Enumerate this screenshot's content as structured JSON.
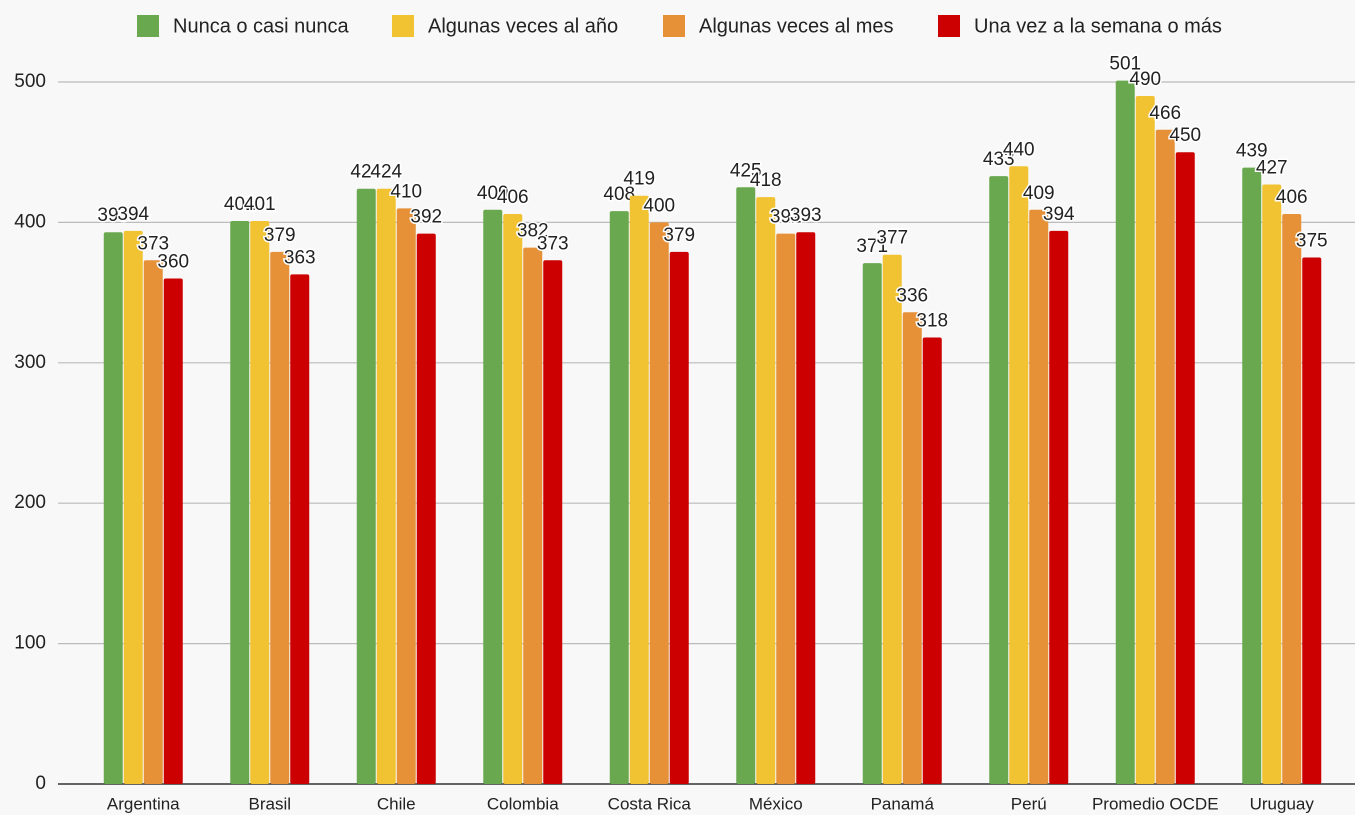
{
  "chart_data": {
    "type": "bar",
    "categories": [
      "Argentina",
      "Brasil",
      "Chile",
      "Colombia",
      "Costa Rica",
      "México",
      "Panamá",
      "Perú",
      "Promedio OCDE",
      "Uruguay"
    ],
    "series": [
      {
        "name": "Nunca o casi nunca",
        "color": "#6aa84f",
        "values": [
          393,
          401,
          424,
          409,
          408,
          425,
          371,
          433,
          501,
          439
        ]
      },
      {
        "name": "Algunas veces al año",
        "color": "#f1c232",
        "values": [
          394,
          401,
          424,
          406,
          419,
          418,
          377,
          440,
          490,
          427
        ]
      },
      {
        "name": "Algunas veces al mes",
        "color": "#e69138",
        "values": [
          373,
          379,
          410,
          382,
          400,
          392,
          336,
          409,
          466,
          406
        ]
      },
      {
        "name": "Una vez a la semana o más",
        "color": "#cc0000",
        "values": [
          360,
          363,
          392,
          373,
          379,
          393,
          318,
          394,
          450,
          375
        ]
      }
    ],
    "ylim": [
      0,
      500
    ],
    "yticks": [
      0,
      100,
      200,
      300,
      400,
      500
    ],
    "grid": true,
    "legend": "top"
  }
}
